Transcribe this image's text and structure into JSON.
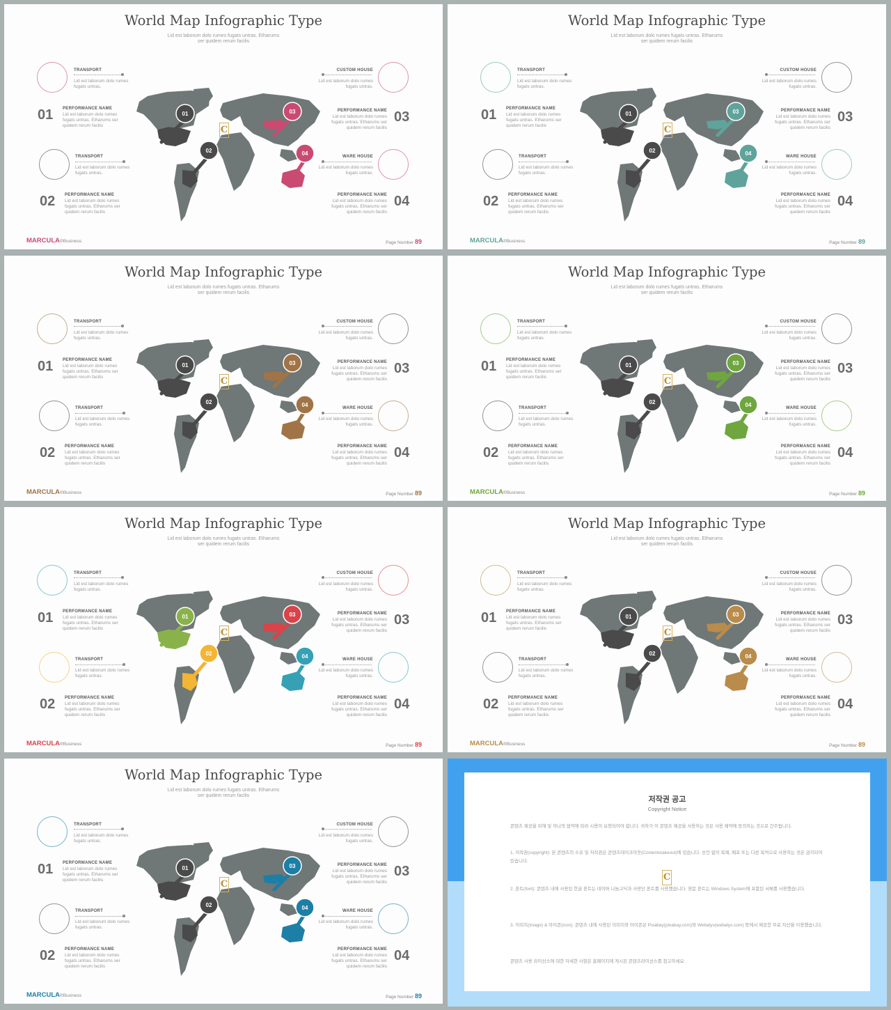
{
  "slide": {
    "title": "World Map Infographic Type",
    "subtitle_line1": "Lid est laborum dolo rumes fugats untras. Etharums",
    "subtitle_line2": "ser quidem rerum facilis",
    "top_left_label": "TRANSPORT",
    "top_right_label": "CUSTOM HOUSE",
    "mid_left_label": "TRANSPORT",
    "mid_right_label": "WARE HOUSE",
    "perf_label": "PERFORMANCE NAME",
    "short_text_1": "Lid est laborum dolo rumes",
    "short_text_2": "fugats untras.",
    "perf_text_1": "Lid est laborum dolo rumes",
    "perf_text_2": "fugats untras. Etharums ser",
    "perf_text_3": "quidem rerum facilis",
    "num_01": "01",
    "num_02": "02",
    "num_03": "03",
    "num_04": "04",
    "pin_01": "01",
    "pin_02": "02",
    "pin_03": "03",
    "pin_04": "04",
    "brand": "MARCULA",
    "brand_suffix": "®Business",
    "page_label": "Page Number",
    "page_number": "89",
    "logo_letter": "C"
  },
  "variants": [
    {
      "accent": "#c94b72",
      "pins": [
        "#4a4a4a",
        "#4a4a4a",
        "#c94b72",
        "#c94b72"
      ],
      "rings": [
        "#c94b72",
        "#4a4a4a",
        "#c94b72",
        "#c94b72"
      ]
    },
    {
      "accent": "#5fa39b",
      "pins": [
        "#4a4a4a",
        "#4a4a4a",
        "#5fa39b",
        "#5fa39b"
      ],
      "rings": [
        "#5fa39b",
        "#4a4a4a",
        "#4a4a4a",
        "#5fa39b"
      ]
    },
    {
      "accent": "#a07446",
      "pins": [
        "#4a4a4a",
        "#4a4a4a",
        "#a07446",
        "#a07446"
      ],
      "rings": [
        "#a07446",
        "#4a4a4a",
        "#4a4a4a",
        "#a07446"
      ]
    },
    {
      "accent": "#6fa63f",
      "pins": [
        "#4a4a4a",
        "#4a4a4a",
        "#6fa63f",
        "#6fa63f"
      ],
      "rings": [
        "#6fa63f",
        "#4a4a4a",
        "#4a4a4a",
        "#6fa63f"
      ]
    },
    {
      "accent": "#d9434a",
      "pins": [
        "#8ab24a",
        "#f3b535",
        "#d9434a",
        "#36a1b4"
      ],
      "rings": [
        "#36a1b4",
        "#f3b535",
        "#d9434a",
        "#36a1b4"
      ]
    },
    {
      "accent": "#b98c4b",
      "pins": [
        "#4a4a4a",
        "#4a4a4a",
        "#b98c4b",
        "#b98c4b"
      ],
      "rings": [
        "#b98c4b",
        "#4a4a4a",
        "#4a4a4a",
        "#b98c4b"
      ]
    },
    {
      "accent": "#1d7fa6",
      "pins": [
        "#4a4a4a",
        "#4a4a4a",
        "#1d7fa6",
        "#1d7fa6"
      ],
      "rings": [
        "#1d7fa6",
        "#4a4a4a",
        "#4a4a4a",
        "#1d7fa6"
      ]
    }
  ],
  "notice": {
    "title": "저작권 공고",
    "subtitle": "Copyright Notice",
    "intro": "콘텐츠 제공을 위해 및 하나의 협약에 따라 시용이 요청되어야 합니다. 귀하가 이 콘텐츠 제공을 사용하는 것은 사용 제약에 동의하는 것으로 간주됩니다.",
    "item1": "1. 저작권(copyright): 본 콘텐츠의 소유 및 저작권은 콘텐츠테이크아웃(Contentstakeout)에 있습니다. 승인 없이 복제, 배포 또는 다른 목적으로 사용하는 것은 금지되어 있습니다.",
    "item2": "2. 폰트(font): 콘텐츠 내에 사용된 한글 폰트는 네이버 나눔고딕과 사랑단 폰트를 사용했습니다. 영문 폰트는 Windows System에 포함된 서체를 사용했습니다.",
    "item3": "3. 이미지(image) & 아이콘(icon): 콘텐츠 내에 사용된 이미지와 아이콘은 Pixabay(pixabay.com)와 Webalys(webalys.com) 등에서 제공한 무료 자산을 이용했습니다.",
    "outro": "콘텐츠 사용 라이선스에 대한 자세한 사항은 홈페이지에 게시된 콘텐츠라이선스를 참고하세요."
  }
}
